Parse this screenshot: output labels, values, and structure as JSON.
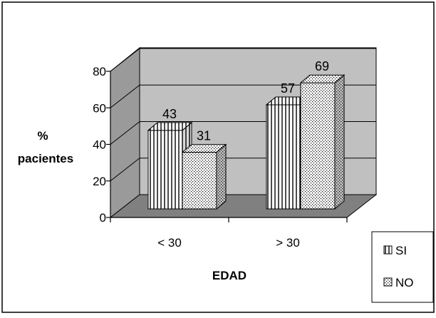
{
  "chart_data": {
    "type": "bar",
    "categories": [
      "< 30",
      "> 30"
    ],
    "series": [
      {
        "name": "SI",
        "values": [
          43,
          57
        ],
        "pattern": "vertical-stripes"
      },
      {
        "name": "NO",
        "values": [
          31,
          69
        ],
        "pattern": "dots"
      }
    ],
    "xlabel": "EDAD",
    "ylabel": [
      "%",
      "pacientes"
    ],
    "ylim": [
      0,
      80
    ],
    "yticks": [
      "0",
      "20",
      "40",
      "60",
      "80"
    ],
    "grid": true,
    "three_d": true,
    "legend_position": "bottom-right",
    "colors": {
      "background_wall": "#c0c0c0",
      "floor": "#808080",
      "bar_fill": "#ffffff",
      "bar_lines": "#000000"
    }
  }
}
